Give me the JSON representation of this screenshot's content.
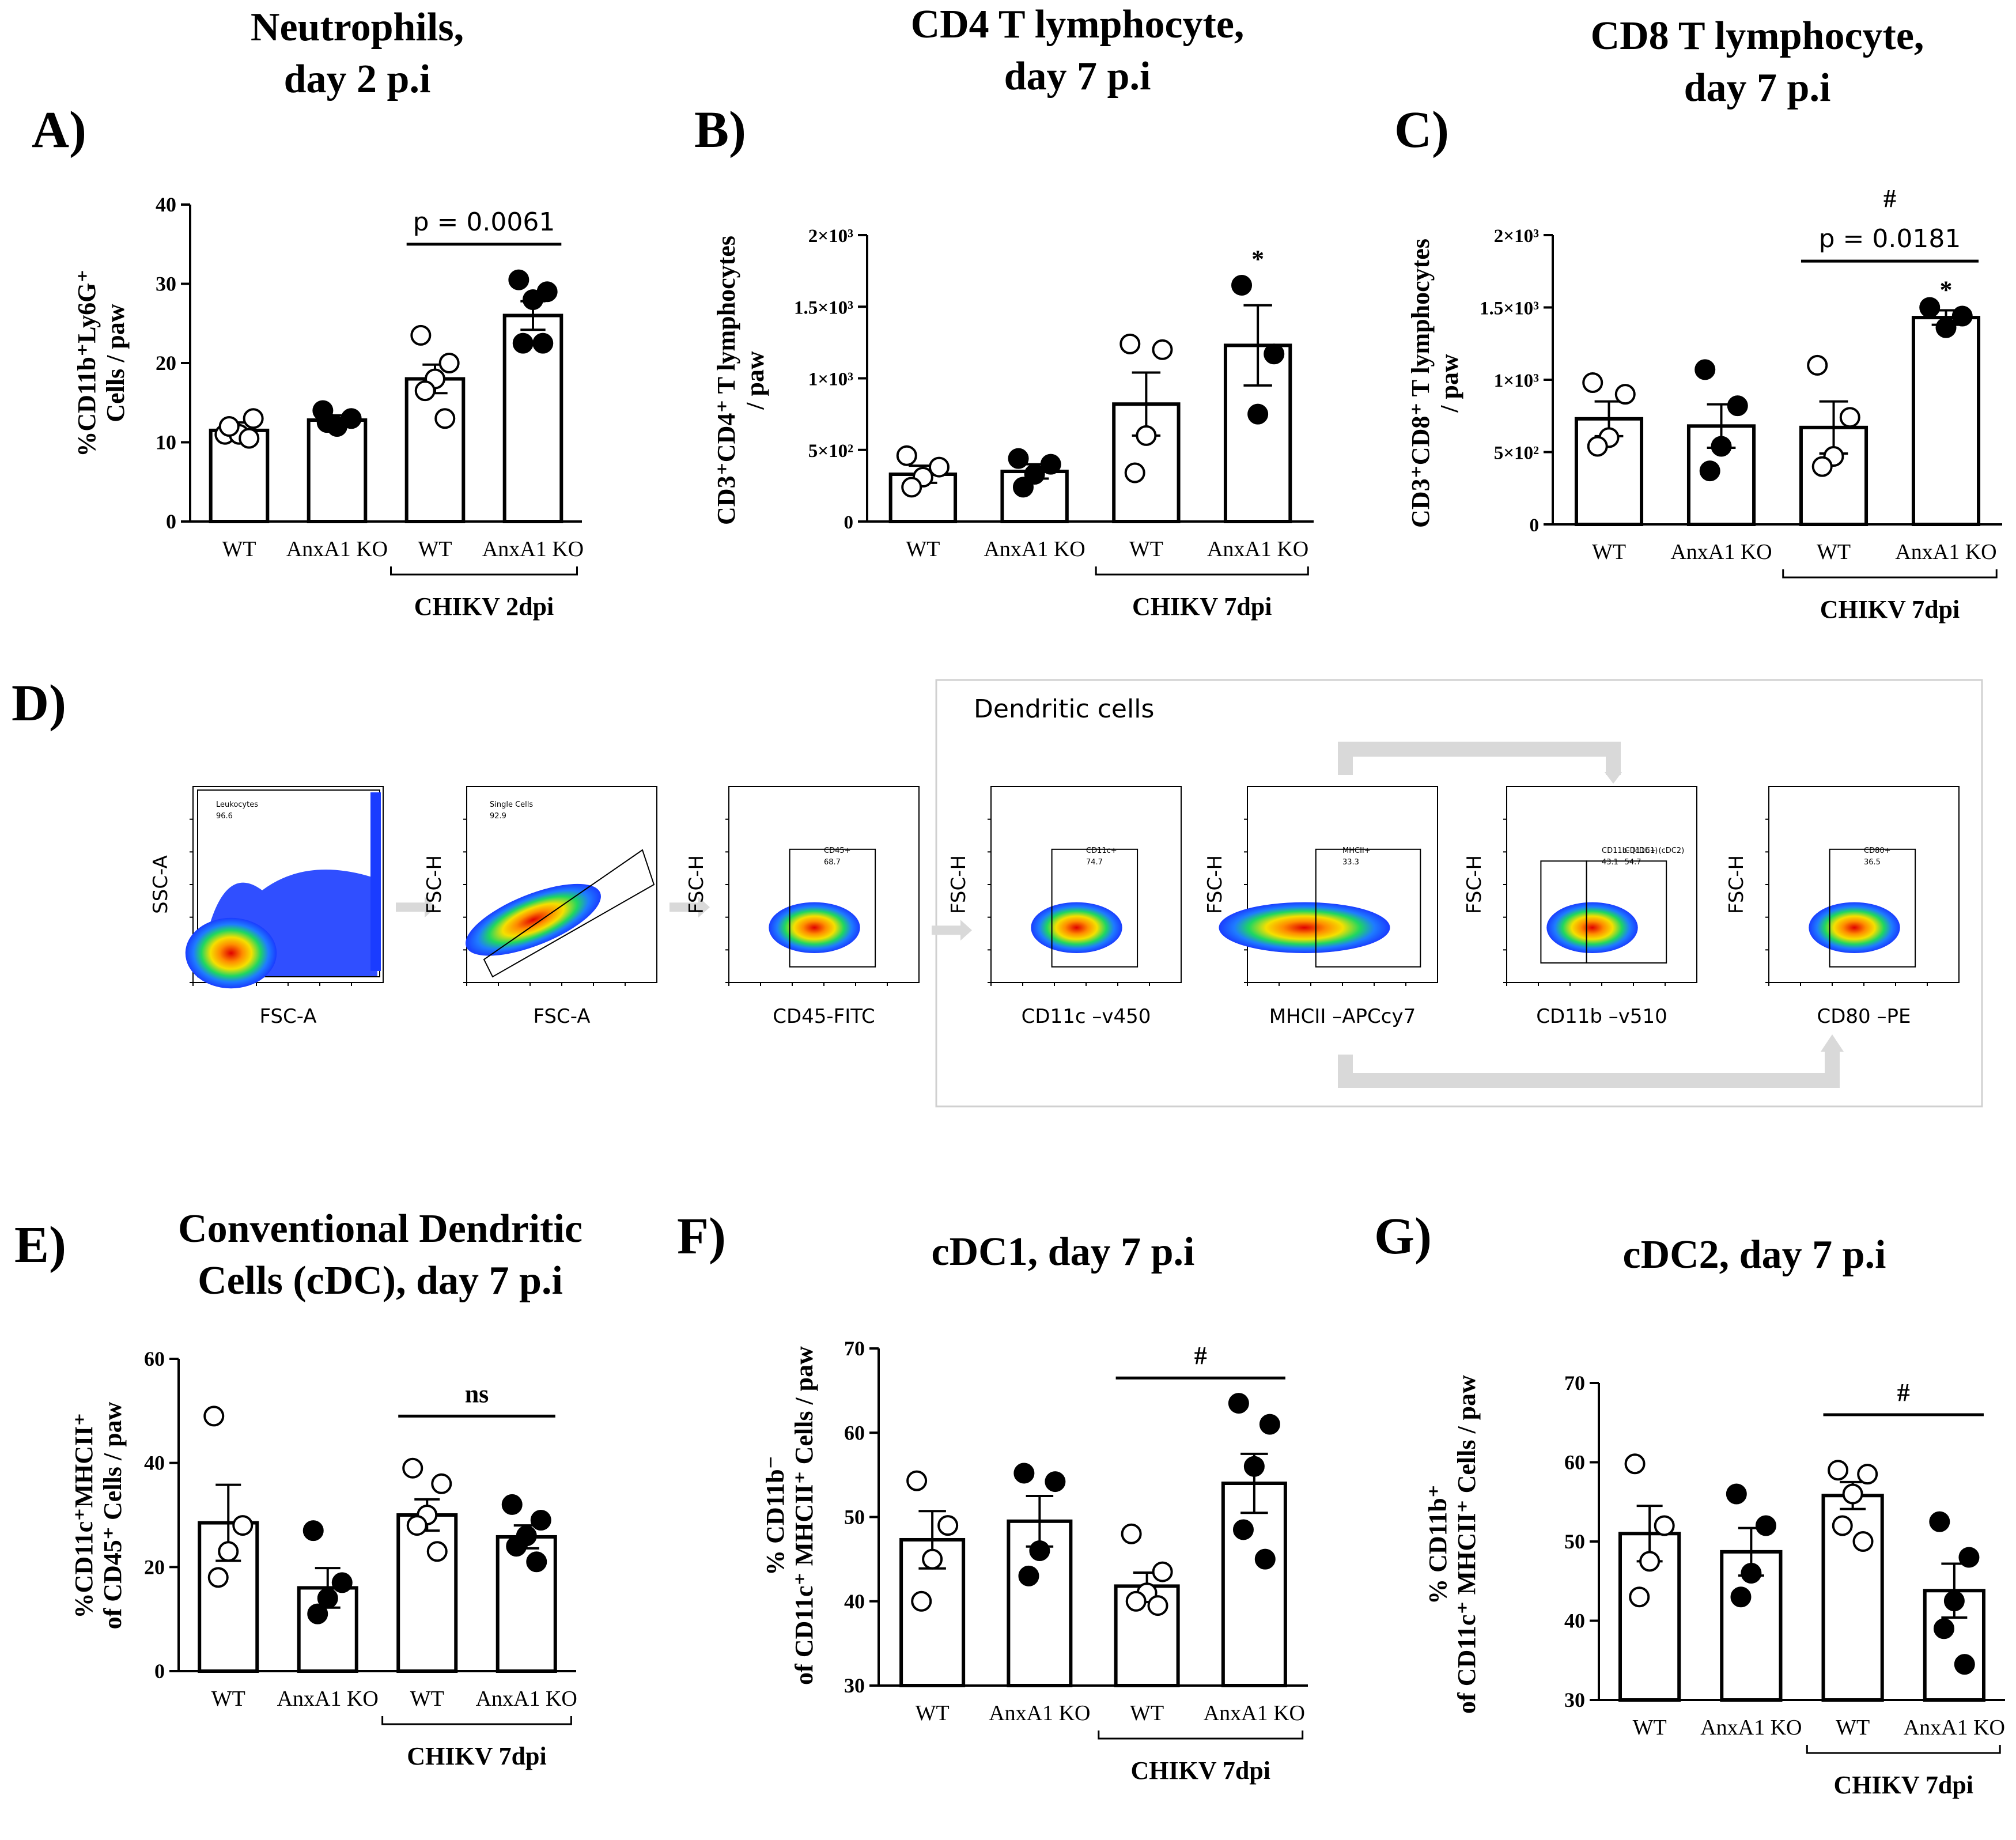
{
  "panels": {
    "A": {
      "letter": "A)",
      "title_lines": [
        "Neutrophils,",
        "day 2 p.i"
      ],
      "ylabel_lines": [
        "%CD11b⁺Ly6G⁺",
        "Cells / paw"
      ],
      "categories": [
        "WT",
        "AnxA1 KO",
        "WT",
        "AnxA1 KO"
      ],
      "group_label": "CHIKV 2dpi",
      "ylim": [
        0,
        40
      ],
      "yticks": [
        {
          "v": 0,
          "t": "0"
        },
        {
          "v": 10,
          "t": "10"
        },
        {
          "v": 20,
          "t": "20"
        },
        {
          "v": 30,
          "t": "30"
        },
        {
          "v": 40,
          "t": "40"
        }
      ],
      "bars": [
        {
          "mean": 11.5,
          "sem": 1.0,
          "filled": false,
          "points": [
            11,
            13,
            11,
            12,
            10.5
          ]
        },
        {
          "mean": 12.8,
          "sem": 0.6,
          "filled": true,
          "points": [
            14,
            13,
            12,
            12.5
          ]
        },
        {
          "mean": 18,
          "sem": 1.8,
          "filled": false,
          "points": [
            23.5,
            20,
            18,
            16.5,
            13
          ]
        },
        {
          "mean": 26,
          "sem": 1.8,
          "filled": true,
          "points": [
            30.5,
            29,
            28,
            22.5,
            22.5
          ]
        }
      ],
      "annotations": [
        {
          "text": "p = 0.0061",
          "y": 35,
          "from": 2,
          "to": 3
        }
      ],
      "star_labels": []
    },
    "B": {
      "letter": "B)",
      "title_lines": [
        "CD4 T lymphocyte,",
        "day 7 p.i"
      ],
      "ylabel_lines": [
        "CD3⁺CD4⁺ T lymphocytes",
        "/ paw"
      ],
      "categories": [
        "WT",
        "AnxA1 KO",
        "WT",
        "AnxA1 KO"
      ],
      "group_label": "CHIKV 7dpi",
      "ylim": [
        0,
        2000
      ],
      "yticks": [
        {
          "v": 0,
          "t": "0"
        },
        {
          "v": 500,
          "t": "5×10²"
        },
        {
          "v": 1000,
          "t": "1×10³"
        },
        {
          "v": 1500,
          "t": "1.5×10³"
        },
        {
          "v": 2000,
          "t": "2×10³"
        }
      ],
      "bars": [
        {
          "mean": 330,
          "sem": 60,
          "filled": false,
          "points": [
            460,
            380,
            310,
            240
          ]
        },
        {
          "mean": 350,
          "sem": 50,
          "filled": true,
          "points": [
            440,
            400,
            330,
            240
          ]
        },
        {
          "mean": 820,
          "sem": 220,
          "filled": false,
          "points": [
            1240,
            1200,
            600,
            340
          ]
        },
        {
          "mean": 1230,
          "sem": 280,
          "filled": true,
          "points": [
            1650,
            1170,
            750
          ]
        }
      ],
      "annotations": [],
      "star_labels": [
        {
          "bar": 3,
          "text": "*",
          "y": 1830
        }
      ]
    },
    "C": {
      "letter": "C)",
      "title_lines": [
        "CD8 T lymphocyte,",
        "day 7 p.i"
      ],
      "ylabel_lines": [
        "CD3⁺CD8⁺ T lymphocytes",
        "/ paw"
      ],
      "categories": [
        "WT",
        "AnxA1 KO",
        "WT",
        "AnxA1 KO"
      ],
      "group_label": "CHIKV 7dpi",
      "ylim": [
        0,
        2000
      ],
      "yticks": [
        {
          "v": 0,
          "t": "0"
        },
        {
          "v": 500,
          "t": "5×10²"
        },
        {
          "v": 1000,
          "t": "1×10³"
        },
        {
          "v": 1500,
          "t": "1.5×10³"
        },
        {
          "v": 2000,
          "t": "2×10³"
        }
      ],
      "bars": [
        {
          "mean": 730,
          "sem": 120,
          "filled": false,
          "points": [
            980,
            900,
            600,
            540
          ]
        },
        {
          "mean": 680,
          "sem": 150,
          "filled": true,
          "points": [
            1070,
            820,
            540,
            370
          ]
        },
        {
          "mean": 670,
          "sem": 180,
          "filled": false,
          "points": [
            1100,
            740,
            470,
            400
          ]
        },
        {
          "mean": 1430,
          "sem": 50,
          "filled": true,
          "points": [
            1500,
            1440,
            1360
          ]
        }
      ],
      "annotations": [
        {
          "text": "p = 0.0181",
          "y": 1820,
          "from": 2,
          "to": 3
        },
        {
          "text": "#",
          "y": 2100,
          "from": 2,
          "to": 3,
          "no_line": true
        }
      ],
      "star_labels": [
        {
          "bar": 3,
          "text": "*",
          "y": 1620
        }
      ]
    },
    "D": {
      "letter": "D)",
      "box_title": "Dendritic cells",
      "plots": [
        {
          "ylabel": "SSC-A",
          "xlabel": "FSC-A",
          "gate_name": "Leukocytes",
          "gate_value": "96.6"
        },
        {
          "ylabel": "FSC-H",
          "xlabel": "FSC-A",
          "gate_name": "Single Cells",
          "gate_value": "92.9"
        },
        {
          "ylabel": "FSC-H",
          "xlabel": "CD45-FITC",
          "gate_name": "CD45+",
          "gate_value": "68.7"
        },
        {
          "ylabel": "FSC-H",
          "xlabel": "CD11c –v450",
          "gate_name": "CD11c+",
          "gate_value": "74.7"
        },
        {
          "ylabel": "FSC-H",
          "xlabel": "MHCII –APCcy7",
          "gate_name": "MHCII+",
          "gate_value": "33.3"
        },
        {
          "ylabel": "FSC-H",
          "xlabel": "CD11b –v510",
          "gate_name": "CD11b- (cDC1)",
          "gate_value": "43.1",
          "gate2_name": "CD11b+ (cDC2)",
          "gate2_value": "54.7"
        },
        {
          "ylabel": "FSC-H",
          "xlabel": "CD80 –PE",
          "gate_name": "CD80+",
          "gate_value": "36.5"
        }
      ]
    },
    "E": {
      "letter": "E)",
      "title_lines": [
        "Conventional Dendritic",
        "Cells (cDC), day 7 p.i"
      ],
      "ylabel_lines": [
        "%CD11c⁺MHCII⁺",
        "of CD45⁺ Cells / paw"
      ],
      "categories": [
        "WT",
        "AnxA1 KO",
        "WT",
        "AnxA1 KO"
      ],
      "group_label": "CHIKV 7dpi",
      "ylim": [
        0,
        60
      ],
      "yticks": [
        {
          "v": 0,
          "t": "0"
        },
        {
          "v": 20,
          "t": "20"
        },
        {
          "v": 40,
          "t": "40"
        },
        {
          "v": 60,
          "t": "60"
        }
      ],
      "bars": [
        {
          "mean": 28.5,
          "sem": 7.3,
          "filled": false,
          "points": [
            49,
            28,
            23,
            18
          ]
        },
        {
          "mean": 16,
          "sem": 3.8,
          "filled": true,
          "points": [
            27,
            17,
            14,
            11
          ]
        },
        {
          "mean": 30,
          "sem": 3,
          "filled": false,
          "points": [
            39,
            36,
            30,
            28,
            23
          ]
        },
        {
          "mean": 25.8,
          "sem": 2.2,
          "filled": true,
          "points": [
            32,
            29,
            26,
            24,
            21
          ]
        }
      ],
      "annotations": [
        {
          "text": "ns",
          "y": 49,
          "from": 2,
          "to": 3
        }
      ],
      "star_labels": []
    },
    "F": {
      "letter": "F)",
      "title_lines": [
        "cDC1, day 7 p.i"
      ],
      "ylabel_lines": [
        "% CD11b⁻",
        "of CD11c⁺ MHCII⁺ Cells / paw"
      ],
      "categories": [
        "WT",
        "AnxA1 KO",
        "WT",
        "AnxA1 KO"
      ],
      "group_label": "CHIKV 7dpi",
      "ylim": [
        30,
        70
      ],
      "yticks": [
        {
          "v": 30,
          "t": "30"
        },
        {
          "v": 40,
          "t": "40"
        },
        {
          "v": 50,
          "t": "50"
        },
        {
          "v": 60,
          "t": "60"
        },
        {
          "v": 70,
          "t": "70"
        }
      ],
      "bars": [
        {
          "mean": 47.3,
          "sem": 3.4,
          "filled": false,
          "points": [
            54.3,
            49,
            45,
            40
          ]
        },
        {
          "mean": 49.5,
          "sem": 3.0,
          "filled": true,
          "points": [
            55.2,
            54.2,
            46,
            43
          ]
        },
        {
          "mean": 41.8,
          "sem": 1.6,
          "filled": false,
          "points": [
            48,
            43.5,
            41,
            40,
            39.5
          ]
        },
        {
          "mean": 54,
          "sem": 3.5,
          "filled": true,
          "points": [
            63.5,
            61,
            56,
            48.5,
            45
          ]
        }
      ],
      "annotations": [
        {
          "text": "#",
          "y": 66.5,
          "from": 2,
          "to": 3
        }
      ],
      "star_labels": []
    },
    "G": {
      "letter": "G)",
      "title_lines": [
        "cDC2, day 7 p.i"
      ],
      "ylabel_lines": [
        "% CD11b⁺",
        "of CD11c⁺ MHCII⁺ Cells / paw"
      ],
      "categories": [
        "WT",
        "AnxA1 KO",
        "WT",
        "AnxA1 KO"
      ],
      "group_label": "CHIKV 7dpi",
      "ylim": [
        30,
        70
      ],
      "yticks": [
        {
          "v": 30,
          "t": "30"
        },
        {
          "v": 40,
          "t": "40"
        },
        {
          "v": 50,
          "t": "50"
        },
        {
          "v": 60,
          "t": "60"
        },
        {
          "v": 70,
          "t": "70"
        }
      ],
      "bars": [
        {
          "mean": 51,
          "sem": 3.5,
          "filled": false,
          "points": [
            59.8,
            52,
            47.5,
            43
          ]
        },
        {
          "mean": 48.7,
          "sem": 3.0,
          "filled": true,
          "points": [
            56,
            52,
            46,
            43
          ]
        },
        {
          "mean": 55.8,
          "sem": 1.7,
          "filled": false,
          "points": [
            59,
            58.5,
            56,
            52,
            50
          ]
        },
        {
          "mean": 43.8,
          "sem": 3.4,
          "filled": true,
          "points": [
            52.5,
            48,
            42.5,
            39,
            34.5
          ]
        }
      ],
      "annotations": [
        {
          "text": "#",
          "y": 66,
          "from": 2,
          "to": 3
        }
      ],
      "star_labels": []
    }
  },
  "colors": {
    "bar_fill": "#ffffff",
    "ink": "#000000",
    "flow_arrow": "#d9d9d9",
    "box_border": "#d0d0d0"
  }
}
